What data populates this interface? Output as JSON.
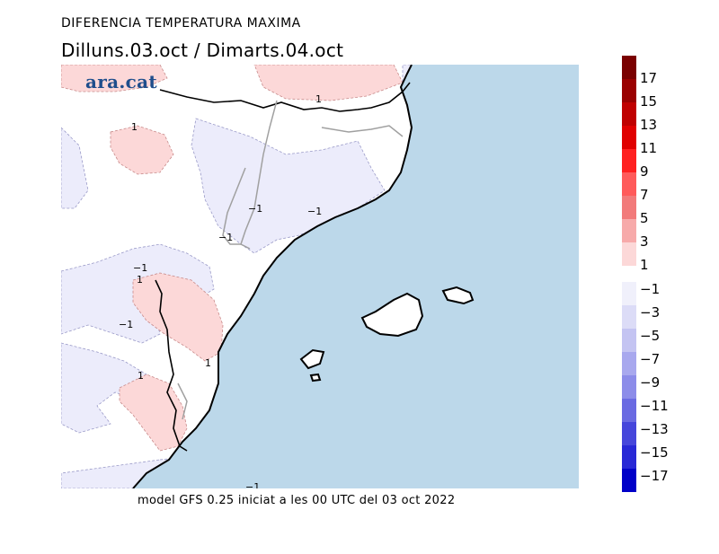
{
  "title": "DIFERENCIA TEMPERATURA MAXIMA",
  "subtitle": "Dilluns.03.oct / Dimarts.04.oct",
  "logo_text": "ara.cat",
  "footer": "model GFS 0.25 iniciat a les 00 UTC del 03 oct 2022",
  "colorbar": {
    "positive": [
      {
        "label": "17",
        "color": "#7a0000"
      },
      {
        "label": "15",
        "color": "#9a0000"
      },
      {
        "label": "13",
        "color": "#c00000"
      },
      {
        "label": "11",
        "color": "#e00000"
      },
      {
        "label": "9",
        "color": "#ff2020"
      },
      {
        "label": "7",
        "color": "#ff5a5a"
      },
      {
        "label": "5",
        "color": "#f27a7a"
      },
      {
        "label": "3",
        "color": "#f7aaaa"
      },
      {
        "label": "1",
        "color": "#fcd8d8"
      }
    ],
    "negative": [
      {
        "label": "−1",
        "color": "#f0f0fb"
      },
      {
        "label": "−3",
        "color": "#dcdcf7"
      },
      {
        "label": "−5",
        "color": "#c4c4f2"
      },
      {
        "label": "−7",
        "color": "#a8a8ee"
      },
      {
        "label": "−9",
        "color": "#8c8ce9"
      },
      {
        "label": "−11",
        "color": "#6a6ae2"
      },
      {
        "label": "−13",
        "color": "#4646db"
      },
      {
        "label": "−15",
        "color": "#2828d6"
      },
      {
        "label": "−17",
        "color": "#0000c8"
      }
    ]
  },
  "map_colors": {
    "sea": "#bcd8ea",
    "land": "#ffffff",
    "warm": "#fcd8d8",
    "cool": "#ececfb"
  },
  "contour_labels": [
    "1",
    "1",
    "−1",
    "−1",
    "−1",
    "1",
    "−1",
    "1",
    "1",
    "−1",
    "−1"
  ]
}
